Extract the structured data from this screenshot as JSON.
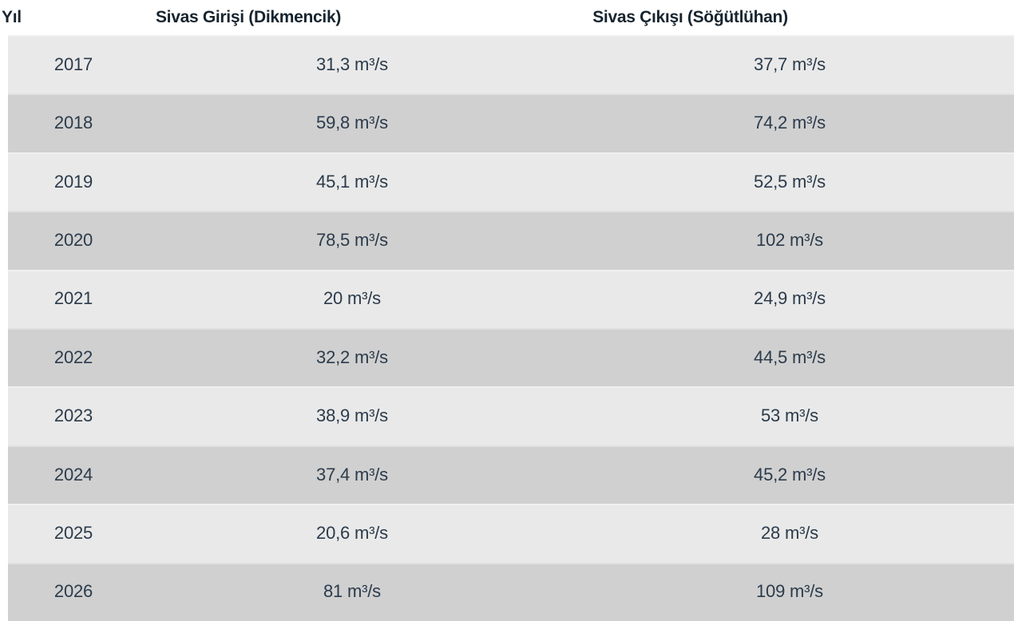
{
  "table": {
    "columns": [
      {
        "label": "Yıl"
      },
      {
        "label": "Sivas Girişi (Dikmencik)"
      },
      {
        "label": "Sivas Çıkışı (Söğütlühan)"
      }
    ],
    "rows": [
      {
        "year": "2017",
        "giris": "31,3 m³/s",
        "cikis": "37,7 m³/s"
      },
      {
        "year": "2018",
        "giris": "59,8 m³/s",
        "cikis": "74,2 m³/s"
      },
      {
        "year": "2019",
        "giris": "45,1 m³/s",
        "cikis": "52,5 m³/s"
      },
      {
        "year": "2020",
        "giris": "78,5 m³/s",
        "cikis": "102 m³/s"
      },
      {
        "year": "2021",
        "giris": "20 m³/s",
        "cikis": "24,9 m³/s"
      },
      {
        "year": "2022",
        "giris": "32,2 m³/s",
        "cikis": "44,5 m³/s"
      },
      {
        "year": "2023",
        "giris": "38,9 m³/s",
        "cikis": "53 m³/s"
      },
      {
        "year": "2024",
        "giris": "37,4 m³/s",
        "cikis": "45,2 m³/s"
      },
      {
        "year": "2025",
        "giris": "20,6 m³/s",
        "cikis": "28 m³/s"
      },
      {
        "year": "2026",
        "giris": "81 m³/s",
        "cikis": "109 m³/s"
      }
    ]
  },
  "chart_data": {
    "type": "table",
    "columns": [
      "Yıl",
      "Sivas Girişi (Dikmencik)",
      "Sivas Çıkışı (Söğütlühan)"
    ],
    "unit": "m³/s",
    "decimal_separator": ",",
    "categories": [
      2017,
      2018,
      2019,
      2020,
      2021,
      2022,
      2023,
      2024,
      2025,
      2026
    ],
    "series": [
      {
        "name": "Sivas Girişi (Dikmencik)",
        "values": [
          31.3,
          59.8,
          45.1,
          78.5,
          20,
          32.2,
          38.9,
          37.4,
          20.6,
          81
        ]
      },
      {
        "name": "Sivas Çıkışı (Söğütlühan)",
        "values": [
          37.7,
          74.2,
          52.5,
          102,
          24.9,
          44.5,
          53,
          45.2,
          28,
          109
        ]
      }
    ]
  },
  "colors": {
    "row_light": "#e9e9e9",
    "row_dark": "#d0d0d0",
    "header_bg": "#ffffff",
    "header_text": "#17242f",
    "body_text": "#2b3b4b"
  }
}
